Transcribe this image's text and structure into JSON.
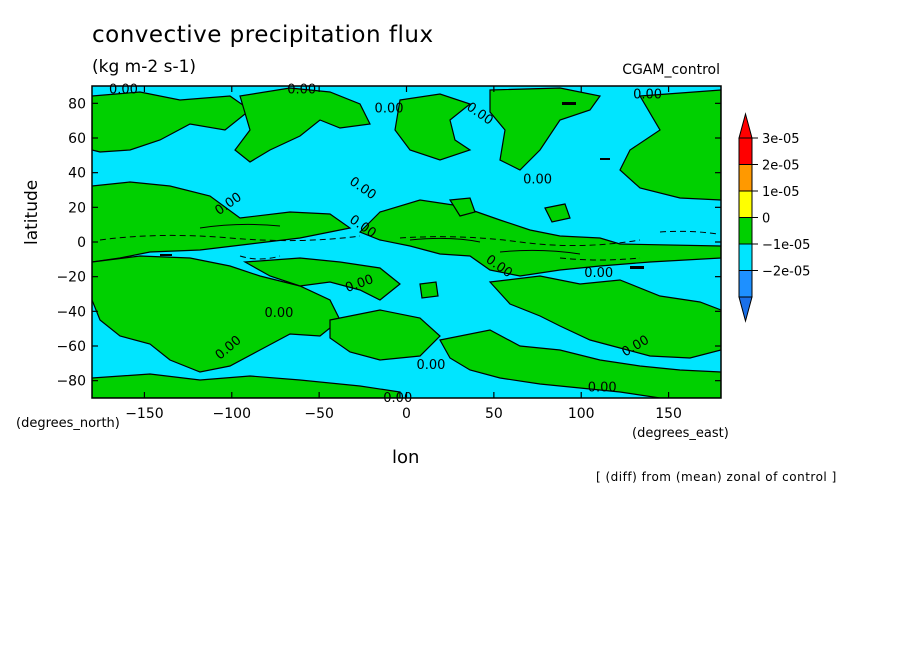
{
  "chart_data": {
    "type": "heatmap",
    "title": "convective precipitation flux",
    "units": "(kg m-2 s-1)",
    "run_label": "CGAM_control",
    "xlabel": "lon",
    "ylabel": "latitude",
    "x_units_label": "(degrees_east)",
    "y_units_label": "(degrees_north)",
    "operation_note": "[ (diff) from (mean) zonal of control ]",
    "xlim": [
      -180,
      180
    ],
    "ylim": [
      -90,
      90
    ],
    "x_ticks": [
      -150,
      -100,
      -50,
      0,
      50,
      100,
      150
    ],
    "y_ticks": [
      80,
      60,
      40,
      20,
      0,
      -20,
      -40,
      -60,
      -80
    ],
    "contour_label": "0.00",
    "colorbar": {
      "levels": [
        -3e-05,
        -2e-05,
        -1e-05,
        0,
        1e-05,
        2e-05,
        3e-05,
        4e-05
      ],
      "colors": [
        "#1e90ff",
        "#1e90ff",
        "#00e5ff",
        "#00d000",
        "#ffff00",
        "#ff9900",
        "#ff0000"
      ],
      "labels": [
        "3e-05",
        "2e-05",
        "1e-05",
        "0",
        "−1e-05",
        "−2e-05"
      ],
      "extend": "both"
    }
  }
}
